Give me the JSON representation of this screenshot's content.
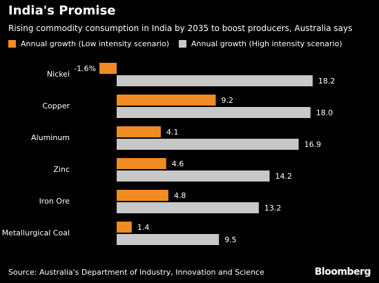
{
  "title": "India's Promise",
  "subtitle": "Rising commodity consumption in India by 2035 to boost producers, Australia says",
  "source": "Source: Australia's Department of Industry, Innovation and Science",
  "brand": "Bloomberg",
  "colors": {
    "background": "#000000",
    "low": "#f08c23",
    "high": "#c8c8c8",
    "text": "#ffffff"
  },
  "chart_data": {
    "type": "bar",
    "orientation": "horizontal",
    "categories": [
      "Nickel",
      "Copper",
      "Aluminum",
      "Zinc",
      "Iron Ore",
      "Metallurgical Coal"
    ],
    "series": [
      {
        "name": "Annual growth (Low intensity scenario)",
        "values": [
          -1.6,
          9.2,
          4.1,
          4.6,
          4.8,
          1.4
        ],
        "labels": [
          "-1.6%",
          "9.2",
          "4.1",
          "4.6",
          "4.8",
          "1.4"
        ]
      },
      {
        "name": "Annual growth (High intensity scenario)",
        "values": [
          18.2,
          18.0,
          16.9,
          14.2,
          13.2,
          9.5
        ],
        "labels": [
          "18.2",
          "18.0",
          "16.9",
          "14.2",
          "13.2",
          "9.5"
        ]
      }
    ],
    "xlim": [
      -1.6,
      18.2
    ],
    "legend": "top-left",
    "grid": false
  }
}
